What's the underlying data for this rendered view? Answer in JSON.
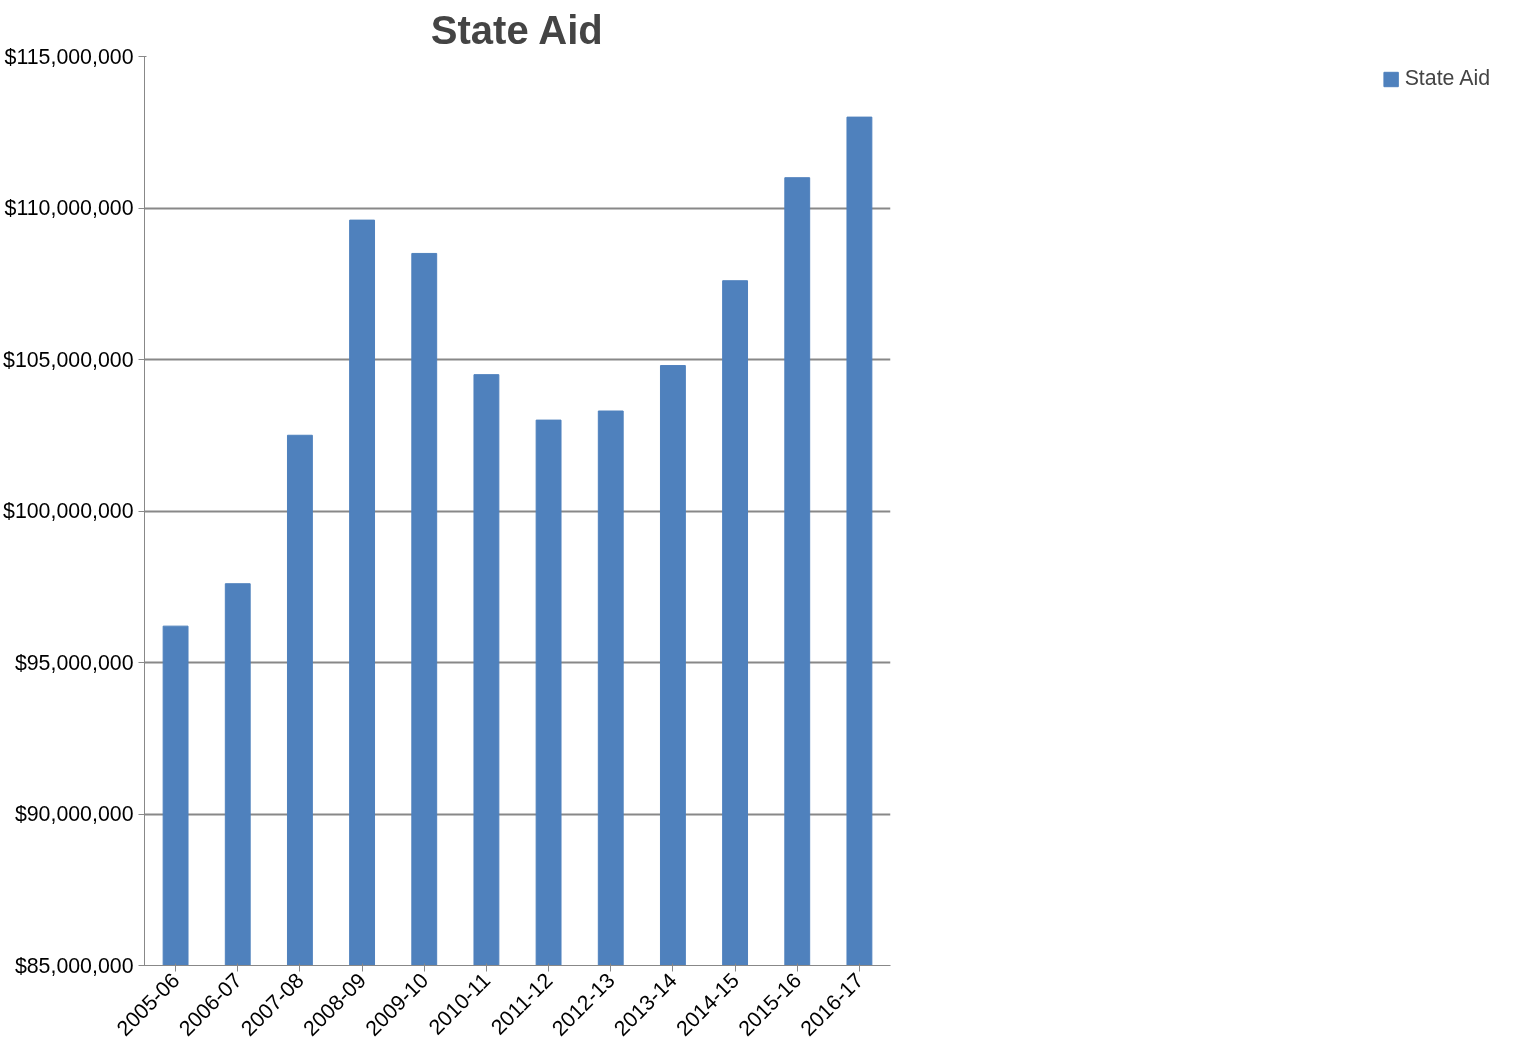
{
  "chart_data": {
    "type": "bar",
    "title": "State Aid",
    "categories": [
      "2005-06",
      "2006-07",
      "2007-08",
      "2008-09",
      "2009-10",
      "2010-11",
      "2011-12",
      "2012-13",
      "2013-14",
      "2014-15",
      "2015-16",
      "2016-17"
    ],
    "series": [
      {
        "name": "State Aid",
        "color": "#4f81bd",
        "values": [
          96200000,
          97600000,
          102500000,
          109600000,
          108500000,
          104500000,
          103000000,
          103300000,
          104800000,
          107600000,
          111000000,
          113000000
        ]
      }
    ],
    "ylim": [
      85000000,
      115000000
    ],
    "yticks": [
      {
        "value": 85000000,
        "label": "$85,000,000"
      },
      {
        "value": 90000000,
        "label": "$90,000,000"
      },
      {
        "value": 95000000,
        "label": "$95,000,000"
      },
      {
        "value": 100000000,
        "label": "$100,000,000"
      },
      {
        "value": 105000000,
        "label": "$105,000,000"
      },
      {
        "value": 110000000,
        "label": "$110,000,000"
      },
      {
        "value": 115000000,
        "label": "$115,000,000"
      }
    ],
    "grid": "y",
    "legend": "right"
  }
}
